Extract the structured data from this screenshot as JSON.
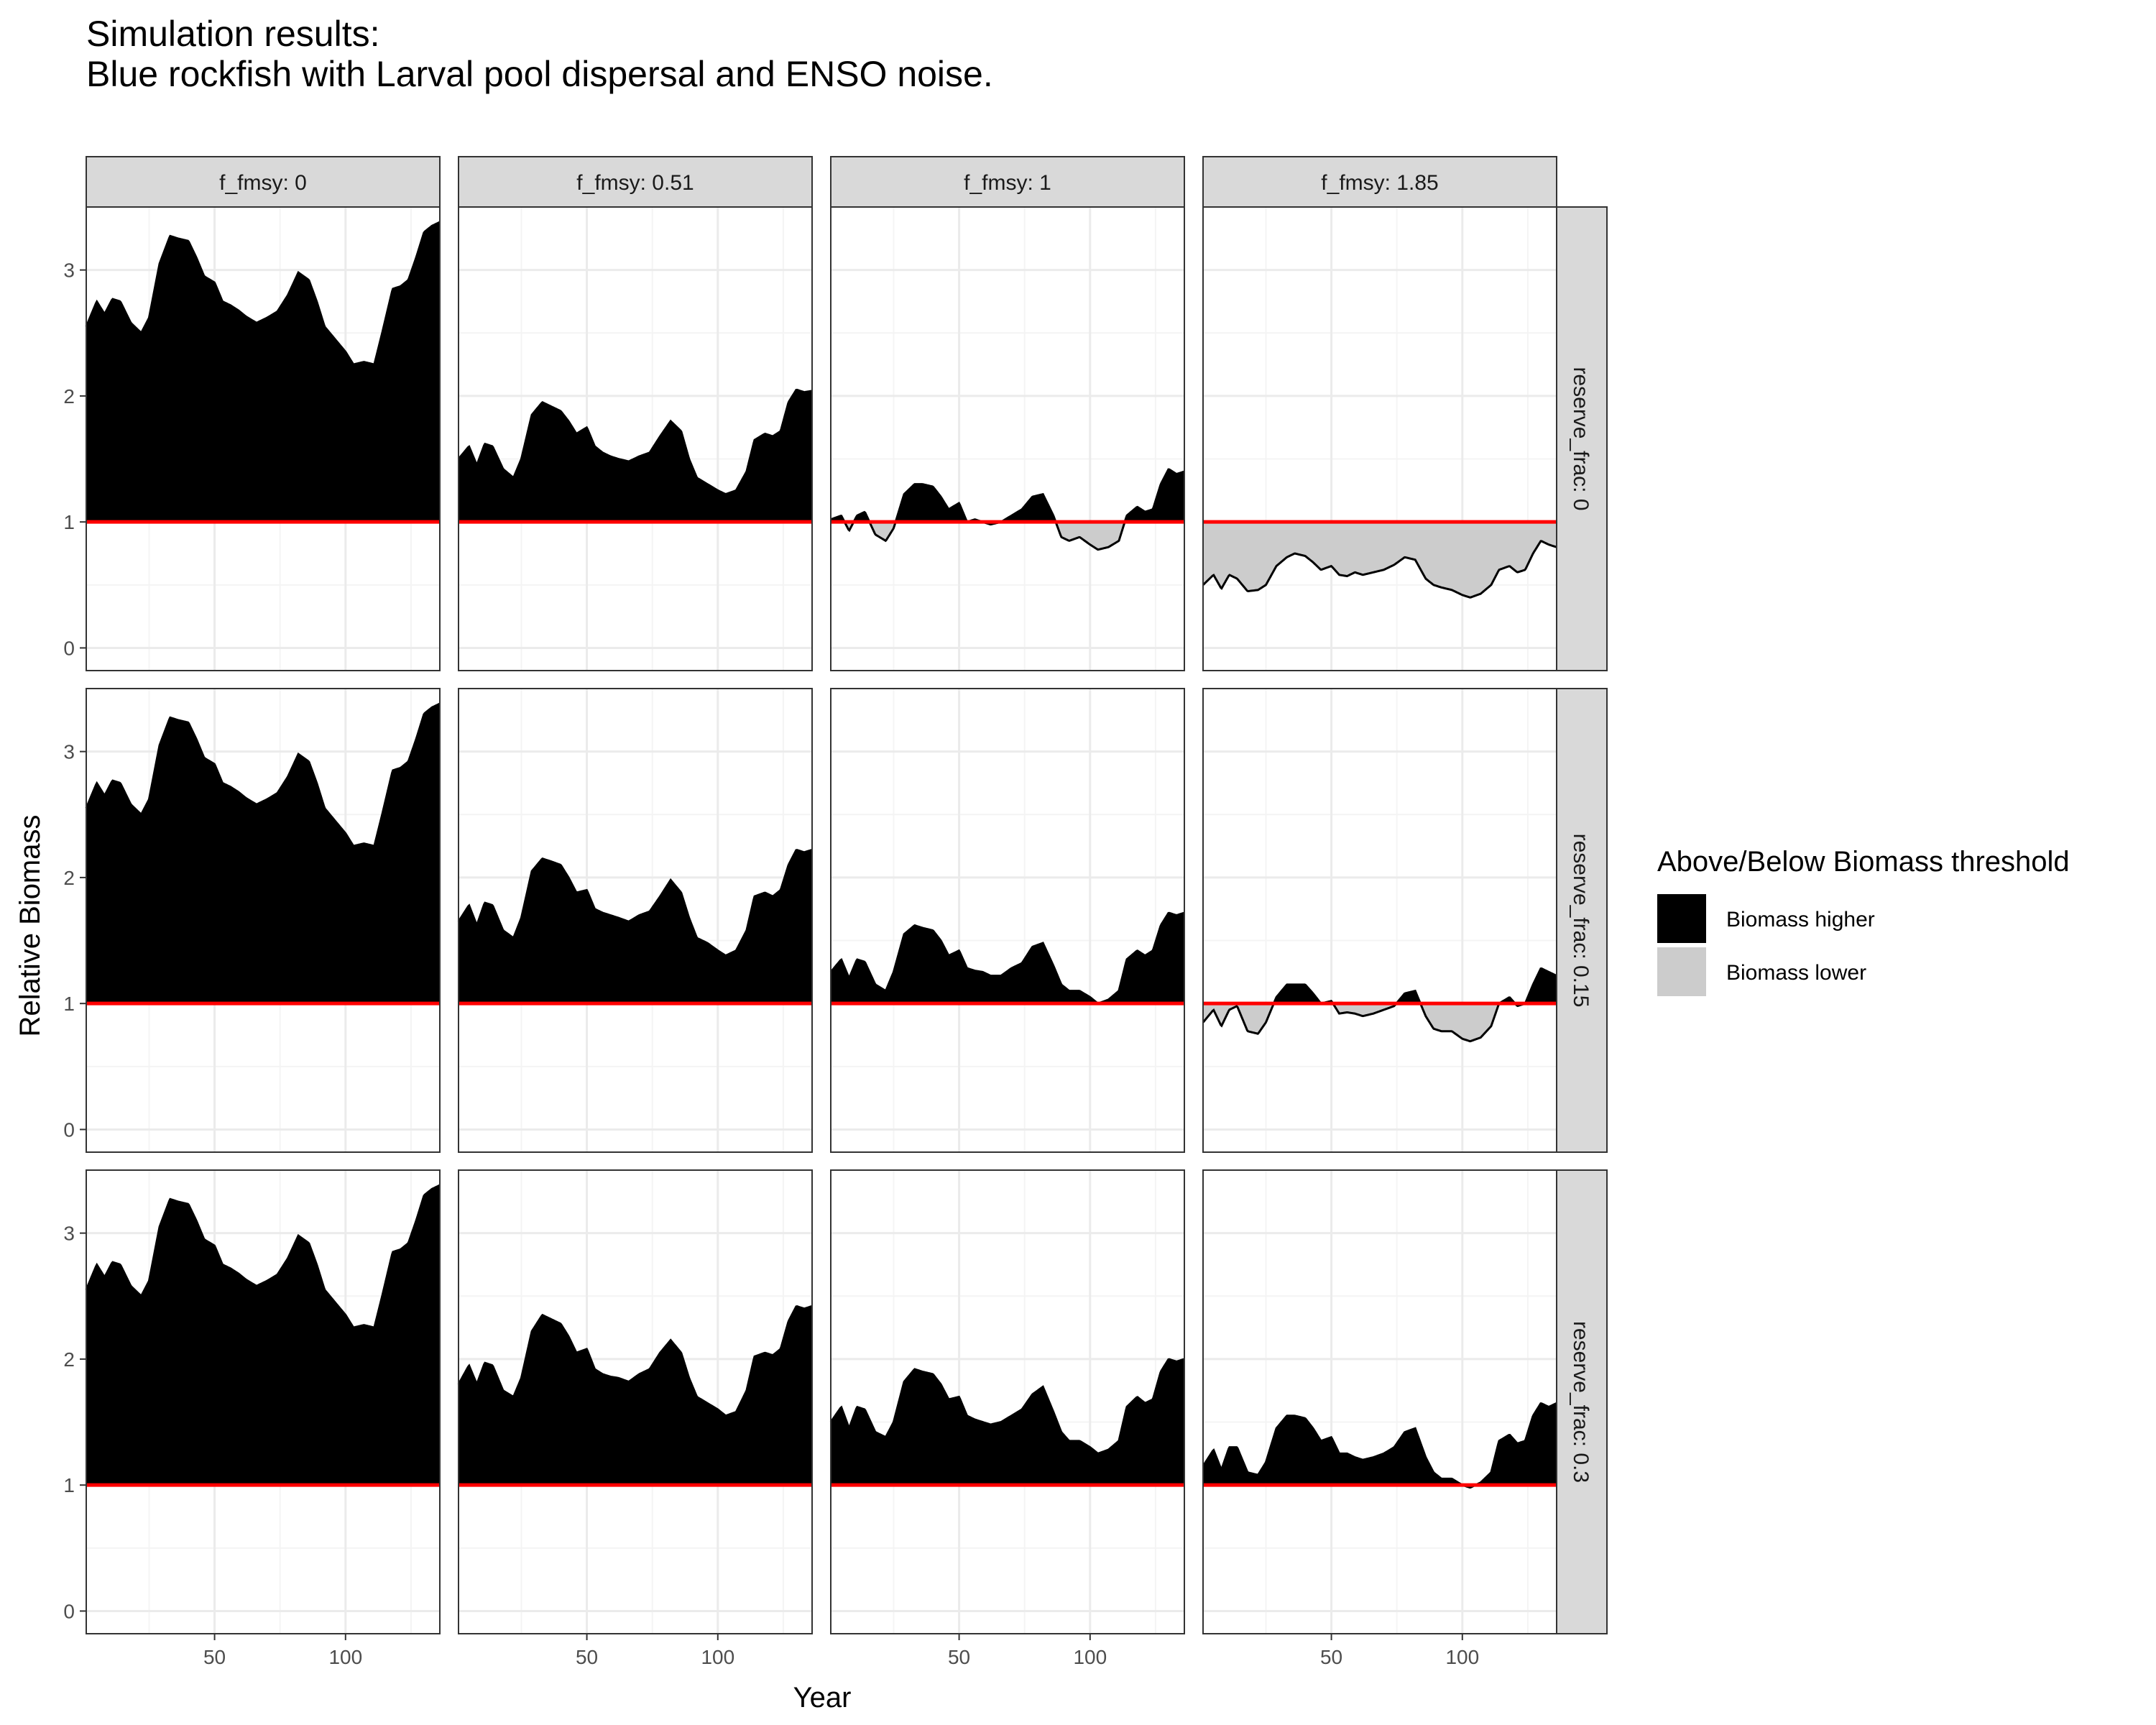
{
  "title": {
    "line1": "Simulation results:",
    "line2": "Blue rockfish with Larval pool dispersal and ENSO noise."
  },
  "colors": {
    "above": "#000000",
    "below": "#cccccc",
    "threshold": "#ff0000",
    "strip_fill": "#d9d9d9",
    "grid_major": "#ebebeb",
    "grid_minor": "#f4f4f4"
  },
  "chart_data": {
    "type": "area",
    "xlabel": "Year",
    "ylabel": "Relative Biomass",
    "xlim": [
      1,
      136
    ],
    "ylim": [
      -0.18,
      3.5
    ],
    "xticks": [
      50,
      100
    ],
    "yticks": [
      0,
      1,
      2,
      3
    ],
    "threshold": 1,
    "grid": true,
    "legend": {
      "title": "Above/Below Biomass threshold",
      "position": "right",
      "items": [
        {
          "label": "Biomass higher",
          "color": "#000000"
        },
        {
          "label": "Biomass lower",
          "color": "#cccccc"
        }
      ]
    },
    "facet_cols": {
      "label_prefix": "f_fmsy: ",
      "values": [
        "0",
        "0.51",
        "1",
        "1.85"
      ]
    },
    "facet_rows": {
      "label_prefix": "reserve_frac: ",
      "values": [
        "0",
        "0.15",
        "0.3"
      ]
    },
    "x": [
      1,
      5,
      8,
      11,
      14,
      18,
      22,
      25,
      29,
      33,
      36,
      40,
      43,
      46,
      50,
      53,
      56,
      59,
      62,
      66,
      70,
      74,
      78,
      82,
      86,
      89,
      92,
      96,
      100,
      103,
      107,
      111,
      114,
      118,
      121,
      124,
      127,
      130,
      133,
      136
    ],
    "panels": [
      {
        "col": "0",
        "row": "0",
        "y": [
          2.55,
          2.75,
          2.65,
          2.77,
          2.75,
          2.58,
          2.5,
          2.62,
          3.05,
          3.27,
          3.25,
          3.23,
          3.1,
          2.95,
          2.9,
          2.75,
          2.72,
          2.68,
          2.63,
          2.58,
          2.62,
          2.67,
          2.8,
          2.98,
          2.92,
          2.75,
          2.55,
          2.45,
          2.35,
          2.25,
          2.27,
          2.25,
          2.5,
          2.85,
          2.87,
          2.92,
          3.1,
          3.3,
          3.35,
          3.38
        ]
      },
      {
        "col": "0.51",
        "row": "0",
        "y": [
          1.5,
          1.6,
          1.45,
          1.62,
          1.6,
          1.42,
          1.35,
          1.5,
          1.85,
          1.95,
          1.92,
          1.88,
          1.8,
          1.7,
          1.75,
          1.6,
          1.55,
          1.52,
          1.5,
          1.48,
          1.52,
          1.55,
          1.68,
          1.8,
          1.72,
          1.5,
          1.35,
          1.3,
          1.25,
          1.22,
          1.25,
          1.4,
          1.65,
          1.7,
          1.68,
          1.72,
          1.95,
          2.05,
          2.03,
          2.04
        ]
      },
      {
        "col": "1",
        "row": "0",
        "y": [
          1.02,
          1.05,
          0.93,
          1.05,
          1.08,
          0.9,
          0.85,
          0.95,
          1.22,
          1.3,
          1.3,
          1.28,
          1.2,
          1.1,
          1.15,
          1.0,
          1.02,
          1.0,
          0.98,
          1.0,
          1.05,
          1.1,
          1.2,
          1.22,
          1.05,
          0.88,
          0.85,
          0.88,
          0.82,
          0.78,
          0.8,
          0.85,
          1.05,
          1.12,
          1.08,
          1.1,
          1.3,
          1.42,
          1.38,
          1.4
        ]
      },
      {
        "col": "1.85",
        "row": "0",
        "y": [
          0.5,
          0.58,
          0.47,
          0.58,
          0.55,
          0.45,
          0.46,
          0.5,
          0.65,
          0.72,
          0.75,
          0.73,
          0.68,
          0.62,
          0.65,
          0.58,
          0.57,
          0.6,
          0.58,
          0.6,
          0.62,
          0.66,
          0.72,
          0.7,
          0.55,
          0.5,
          0.48,
          0.46,
          0.42,
          0.4,
          0.43,
          0.5,
          0.62,
          0.65,
          0.6,
          0.62,
          0.75,
          0.85,
          0.82,
          0.8
        ]
      },
      {
        "col": "0",
        "row": "0.15",
        "y": [
          2.55,
          2.75,
          2.65,
          2.77,
          2.75,
          2.58,
          2.5,
          2.62,
          3.05,
          3.27,
          3.25,
          3.23,
          3.1,
          2.95,
          2.9,
          2.75,
          2.72,
          2.68,
          2.63,
          2.58,
          2.62,
          2.67,
          2.8,
          2.98,
          2.92,
          2.75,
          2.55,
          2.45,
          2.35,
          2.25,
          2.27,
          2.25,
          2.5,
          2.85,
          2.87,
          2.92,
          3.1,
          3.3,
          3.35,
          3.38
        ]
      },
      {
        "col": "0.51",
        "row": "0.15",
        "y": [
          1.65,
          1.78,
          1.62,
          1.8,
          1.78,
          1.58,
          1.52,
          1.68,
          2.05,
          2.15,
          2.13,
          2.1,
          2.0,
          1.88,
          1.9,
          1.75,
          1.72,
          1.7,
          1.68,
          1.65,
          1.7,
          1.73,
          1.85,
          1.98,
          1.88,
          1.68,
          1.52,
          1.48,
          1.42,
          1.38,
          1.42,
          1.58,
          1.85,
          1.88,
          1.85,
          1.9,
          2.1,
          2.22,
          2.2,
          2.22
        ]
      },
      {
        "col": "1",
        "row": "0.15",
        "y": [
          1.25,
          1.35,
          1.2,
          1.35,
          1.33,
          1.15,
          1.1,
          1.25,
          1.55,
          1.62,
          1.6,
          1.58,
          1.5,
          1.38,
          1.42,
          1.28,
          1.26,
          1.25,
          1.22,
          1.22,
          1.28,
          1.32,
          1.45,
          1.48,
          1.3,
          1.15,
          1.1,
          1.1,
          1.05,
          1.0,
          1.03,
          1.1,
          1.35,
          1.42,
          1.38,
          1.42,
          1.62,
          1.72,
          1.7,
          1.72
        ]
      },
      {
        "col": "1.85",
        "row": "0.15",
        "y": [
          0.85,
          0.95,
          0.82,
          0.95,
          0.98,
          0.78,
          0.76,
          0.85,
          1.05,
          1.15,
          1.15,
          1.15,
          1.08,
          1.0,
          1.02,
          0.92,
          0.93,
          0.92,
          0.9,
          0.92,
          0.95,
          0.98,
          1.08,
          1.1,
          0.9,
          0.8,
          0.78,
          0.78,
          0.72,
          0.7,
          0.73,
          0.82,
          1.0,
          1.05,
          0.98,
          1.0,
          1.15,
          1.28,
          1.25,
          1.22
        ]
      },
      {
        "col": "0",
        "row": "0.3",
        "y": [
          2.55,
          2.75,
          2.65,
          2.77,
          2.75,
          2.58,
          2.5,
          2.62,
          3.05,
          3.27,
          3.25,
          3.23,
          3.1,
          2.95,
          2.9,
          2.75,
          2.72,
          2.68,
          2.63,
          2.58,
          2.62,
          2.67,
          2.8,
          2.98,
          2.92,
          2.75,
          2.55,
          2.45,
          2.35,
          2.25,
          2.27,
          2.25,
          2.5,
          2.85,
          2.87,
          2.92,
          3.1,
          3.3,
          3.35,
          3.38
        ]
      },
      {
        "col": "0.51",
        "row": "0.3",
        "y": [
          1.8,
          1.95,
          1.8,
          1.97,
          1.95,
          1.75,
          1.7,
          1.85,
          2.22,
          2.35,
          2.32,
          2.28,
          2.18,
          2.05,
          2.08,
          1.92,
          1.88,
          1.86,
          1.85,
          1.82,
          1.88,
          1.92,
          2.05,
          2.15,
          2.05,
          1.85,
          1.7,
          1.65,
          1.6,
          1.55,
          1.58,
          1.75,
          2.02,
          2.05,
          2.03,
          2.08,
          2.3,
          2.42,
          2.4,
          2.42
        ]
      },
      {
        "col": "1",
        "row": "0.3",
        "y": [
          1.5,
          1.62,
          1.45,
          1.62,
          1.6,
          1.42,
          1.38,
          1.5,
          1.82,
          1.92,
          1.9,
          1.88,
          1.8,
          1.68,
          1.7,
          1.55,
          1.52,
          1.5,
          1.48,
          1.5,
          1.55,
          1.6,
          1.72,
          1.78,
          1.58,
          1.42,
          1.35,
          1.35,
          1.3,
          1.25,
          1.28,
          1.35,
          1.62,
          1.7,
          1.65,
          1.68,
          1.9,
          2.0,
          1.98,
          2.0
        ]
      },
      {
        "col": "1.85",
        "row": "0.3",
        "y": [
          1.15,
          1.28,
          1.12,
          1.3,
          1.3,
          1.1,
          1.08,
          1.18,
          1.45,
          1.55,
          1.55,
          1.53,
          1.45,
          1.35,
          1.38,
          1.25,
          1.25,
          1.22,
          1.2,
          1.22,
          1.25,
          1.3,
          1.42,
          1.45,
          1.22,
          1.1,
          1.05,
          1.05,
          1.0,
          0.98,
          1.02,
          1.1,
          1.35,
          1.4,
          1.33,
          1.35,
          1.55,
          1.65,
          1.62,
          1.65
        ]
      }
    ]
  }
}
